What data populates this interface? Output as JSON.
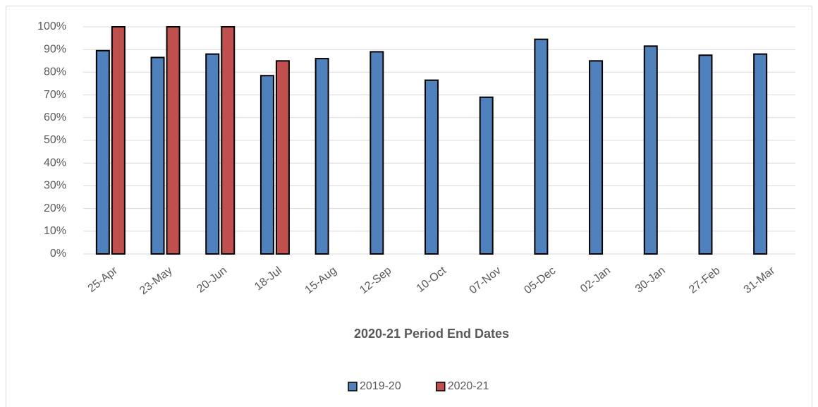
{
  "chart_data": {
    "type": "bar",
    "x_label": "2020-21 Period End Dates",
    "categories": [
      "25-Apr",
      "23-May",
      "20-Jun",
      "18-Jul",
      "15-Aug",
      "12-Sep",
      "10-Oct",
      "07-Nov",
      "05-Dec",
      "02-Jan",
      "30-Jan",
      "27-Feb",
      "31-Mar"
    ],
    "series": [
      {
        "name": "2019-20",
        "color": "#4f81bd",
        "values": [
          89.5,
          86.5,
          88,
          78.5,
          86,
          89,
          76.5,
          69,
          94.5,
          85,
          91.5,
          87.5,
          88
        ]
      },
      {
        "name": "2020-21",
        "color": "#c0504d",
        "values": [
          100,
          100,
          100,
          85,
          null,
          null,
          null,
          null,
          null,
          null,
          null,
          null,
          null
        ]
      }
    ],
    "ylim": [
      0,
      100
    ],
    "yticks": [
      {
        "value": 0,
        "label": "0%"
      },
      {
        "value": 10,
        "label": "10%"
      },
      {
        "value": 20,
        "label": "20%"
      },
      {
        "value": 30,
        "label": "30%"
      },
      {
        "value": 40,
        "label": "40%"
      },
      {
        "value": 50,
        "label": "50%"
      },
      {
        "value": 60,
        "label": "60%"
      },
      {
        "value": 70,
        "label": "70%"
      },
      {
        "value": 80,
        "label": "80%"
      },
      {
        "value": 90,
        "label": "90%"
      },
      {
        "value": 100,
        "label": "100%"
      }
    ],
    "grid": true,
    "legend": "bottom"
  }
}
